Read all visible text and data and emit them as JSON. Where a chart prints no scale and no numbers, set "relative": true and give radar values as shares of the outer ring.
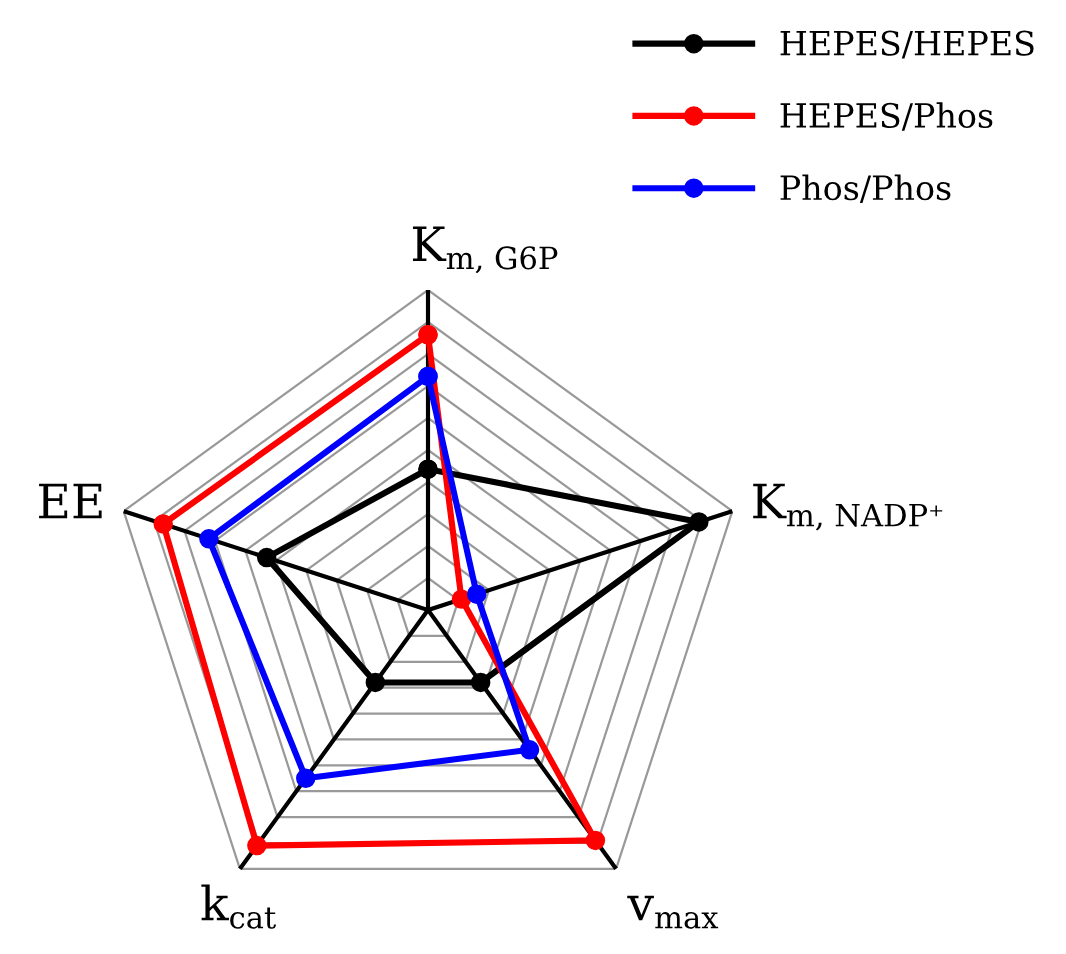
{
  "chart_data": {
    "type": "radar",
    "relative": true,
    "grid": true,
    "legend": "top right",
    "marker": "circle",
    "line_style": "solid",
    "categories": [
      "K$_{m, G6P}$",
      "K$_{m, NADP⁺}$",
      "v$_{max}$",
      "k$_{cat}$",
      "EE"
    ],
    "series": [
      {
        "name": "HEPES/HEPES",
        "color": "#000000",
        "values": [
          0.44,
          0.89,
          0.28,
          0.28,
          0.53
        ]
      },
      {
        "name": "HEPES/Phos",
        "color": "#ff0000",
        "values": [
          0.86,
          0.11,
          0.89,
          0.91,
          0.87
        ]
      },
      {
        "name": "Phos/Phos",
        "color": "#0000ff",
        "values": [
          0.73,
          0.16,
          0.54,
          0.65,
          0.72
        ]
      }
    ]
  }
}
